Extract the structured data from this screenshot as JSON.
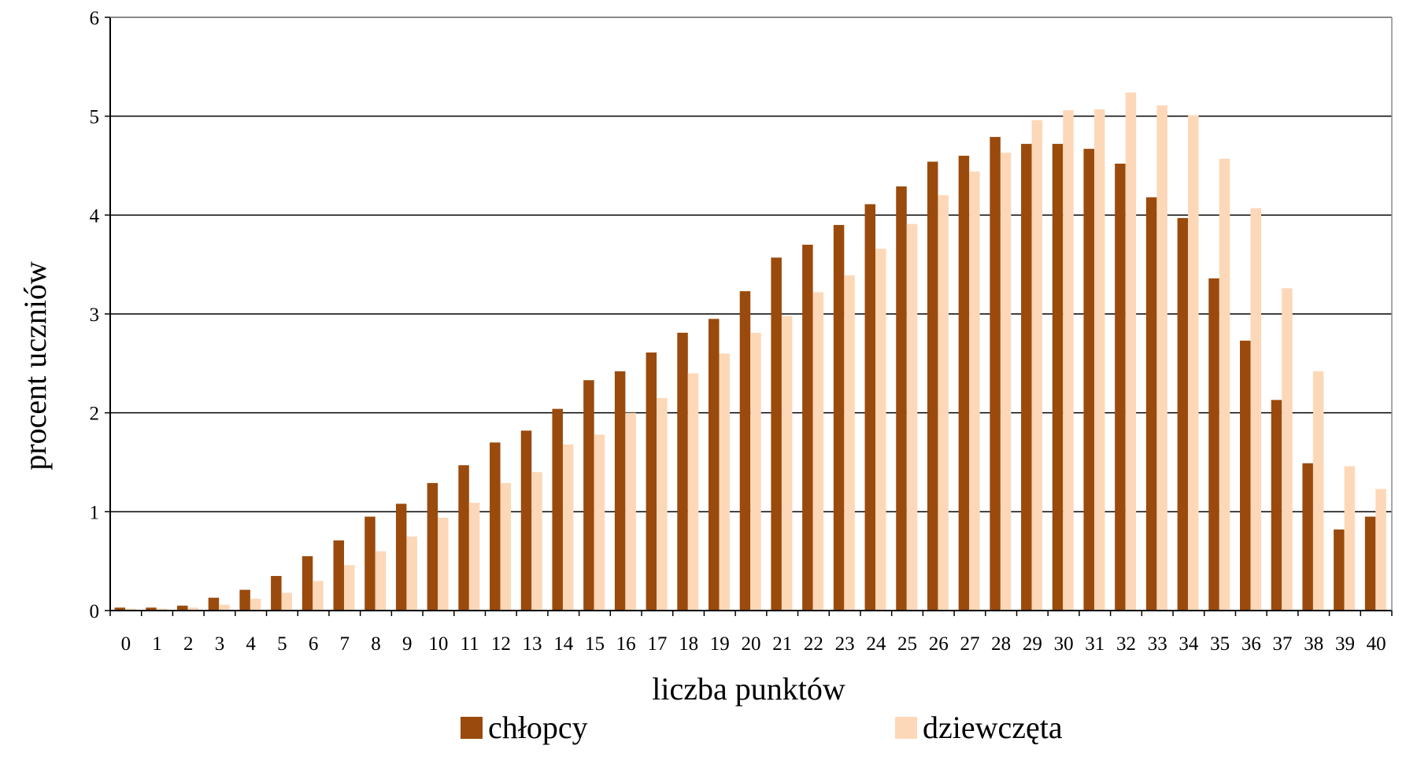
{
  "chart_data": {
    "type": "bar",
    "title": "",
    "xlabel": "liczba punktów",
    "ylabel": "procent uczniów",
    "ylim": [
      0,
      6
    ],
    "yticks": [
      0,
      1,
      2,
      3,
      4,
      5,
      6
    ],
    "grid": true,
    "legend_position": "bottom",
    "categories": [
      "0",
      "1",
      "2",
      "3",
      "4",
      "5",
      "6",
      "7",
      "8",
      "9",
      "10",
      "11",
      "12",
      "13",
      "14",
      "15",
      "16",
      "17",
      "18",
      "19",
      "20",
      "21",
      "22",
      "23",
      "24",
      "25",
      "26",
      "27",
      "28",
      "29",
      "30",
      "31",
      "32",
      "33",
      "34",
      "35",
      "36",
      "37",
      "38",
      "39",
      "40"
    ],
    "series": [
      {
        "name": "chłopcy",
        "color": "#9A4A0C",
        "values": [
          0.03,
          0.03,
          0.05,
          0.13,
          0.21,
          0.35,
          0.55,
          0.71,
          0.95,
          1.08,
          1.29,
          1.47,
          1.7,
          1.82,
          2.04,
          2.33,
          2.42,
          2.61,
          2.81,
          2.95,
          3.23,
          3.57,
          3.7,
          3.9,
          4.11,
          4.29,
          4.54,
          4.6,
          4.79,
          4.72,
          4.72,
          4.67,
          4.52,
          4.18,
          3.97,
          3.36,
          2.73,
          2.13,
          1.49,
          0.82,
          0.95
        ]
      },
      {
        "name": "dziewczęta",
        "color": "#FDD8B8",
        "values": [
          0.02,
          0.02,
          0.03,
          0.06,
          0.12,
          0.18,
          0.3,
          0.46,
          0.6,
          0.75,
          0.94,
          1.09,
          1.29,
          1.4,
          1.68,
          1.78,
          2.0,
          2.15,
          2.4,
          2.6,
          2.81,
          2.98,
          3.22,
          3.39,
          3.66,
          3.91,
          4.2,
          4.44,
          4.63,
          4.96,
          5.06,
          5.07,
          5.24,
          5.11,
          5.01,
          4.57,
          4.07,
          3.26,
          2.42,
          1.46,
          1.23
        ]
      }
    ]
  }
}
